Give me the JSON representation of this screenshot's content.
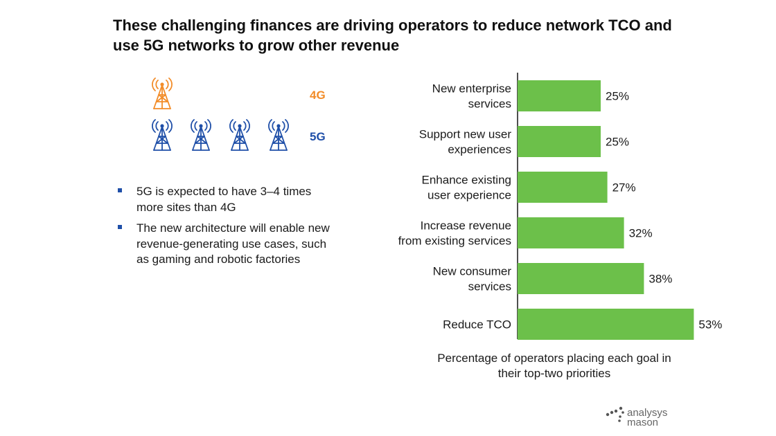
{
  "title": "These challenging finances are driving operators to reduce network TCO and use 5G networks to grow other revenue",
  "generations": {
    "g4": {
      "label": "4G",
      "color": "#F28C28",
      "tower_count": 1,
      "icon": "cell-tower-icon"
    },
    "g5": {
      "label": "5G",
      "color": "#1F4FA8",
      "tower_count": 4,
      "icon": "cell-tower-icon"
    }
  },
  "bullets": [
    "5G is expected to have 3–4 times more sites than 4G",
    "The new architecture will enable new revenue-generating use cases, such as gaming and robotic factories"
  ],
  "bullet_color": "#1F4FA8",
  "bar_color": "#6CC04A",
  "chart_data": {
    "type": "bar",
    "orientation": "horizontal",
    "categories": [
      [
        "New enterprise",
        "services"
      ],
      [
        "Support new user",
        "experiences"
      ],
      [
        "Enhance existing",
        "user experience"
      ],
      [
        "Increase revenue",
        "from existing services"
      ],
      [
        "New consumer",
        "services"
      ],
      [
        "Reduce TCO"
      ]
    ],
    "values": [
      25,
      25,
      27,
      32,
      38,
      53
    ],
    "value_labels": [
      "25%",
      "25%",
      "27%",
      "32%",
      "38%",
      "53%"
    ],
    "xlim": [
      0,
      100
    ],
    "xlabel": "Percentage of operators placing each goal in their top-two priorities",
    "grid": false
  },
  "logo": {
    "line1": "analysys",
    "line2": "mason"
  }
}
